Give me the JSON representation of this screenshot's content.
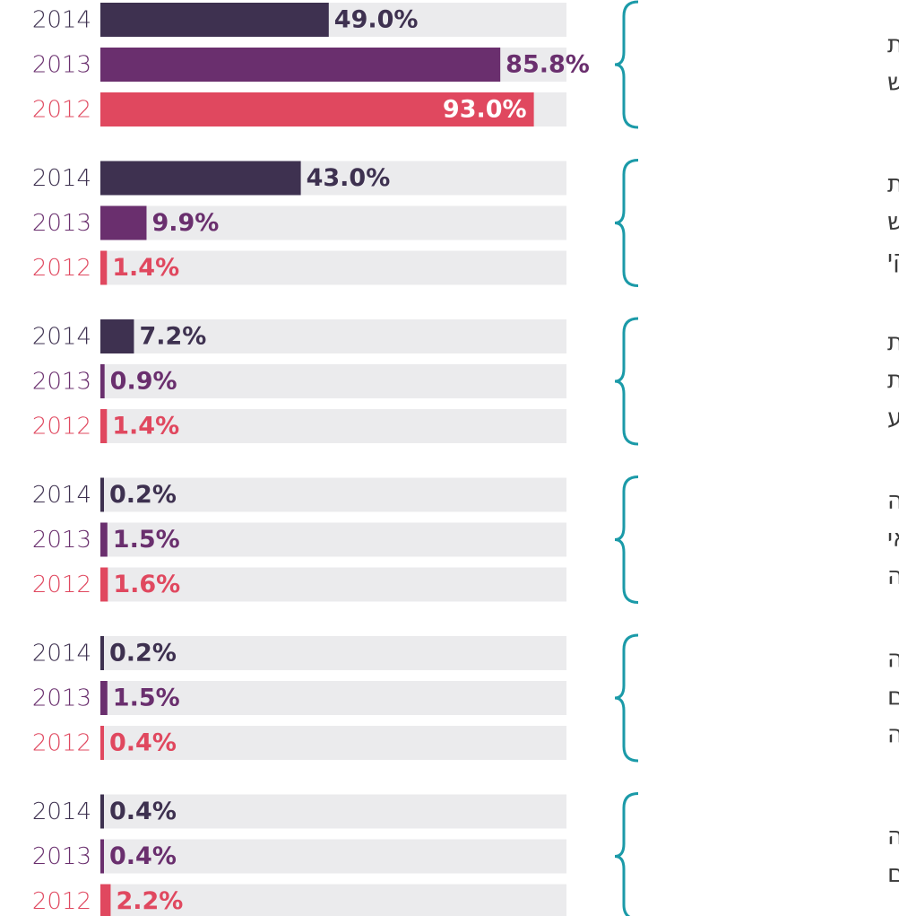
{
  "chart_data": {
    "type": "bar",
    "orientation": "horizontal",
    "categories": [
      [
        "הרשות מסרה את",
        "כל המידע המבוקש"
      ],
      [
        "הרשות מסרה את",
        "המידע המבוקש",
        "באופן חלקי"
      ],
      [
        "הרשות דחתה את",
        "הבקשה למסירת",
        "מידע"
      ],
      [
        "הטיפול בבקשה",
        "הופסק בשל אי",
        "תשלום אגרה"
      ],
      [
        "הטיפול בבקשה",
        "הופסק מטעמים",
        "הנוגעים לפונה"
      ],
      [
        "הטיפול בבקשה",
        "טרם הסתיים"
      ]
    ],
    "series": [
      {
        "name": "2014",
        "color": "#3e3150",
        "values": [
          49.0,
          43.0,
          7.2,
          0.2,
          0.2,
          0.4
        ],
        "value_labels": [
          "49.0%",
          "43.0%",
          "7.2%",
          "0.2%",
          "0.2%",
          "0.4%"
        ]
      },
      {
        "name": "2013",
        "color": "#6a2f6e",
        "values": [
          85.8,
          9.9,
          0.9,
          1.5,
          1.5,
          0.4
        ],
        "value_labels": [
          "85.8%",
          "9.9%",
          "0.9%",
          "1.5%",
          "1.5%",
          "0.4%"
        ]
      },
      {
        "name": "2012",
        "color": "#e0485f",
        "values": [
          93.0,
          1.4,
          1.4,
          1.6,
          0.4,
          2.2
        ],
        "value_labels": [
          "93.0%",
          "1.4%",
          "1.4%",
          "1.6%",
          "0.4%",
          "2.2%"
        ]
      }
    ],
    "xlim": [
      0,
      100
    ]
  }
}
